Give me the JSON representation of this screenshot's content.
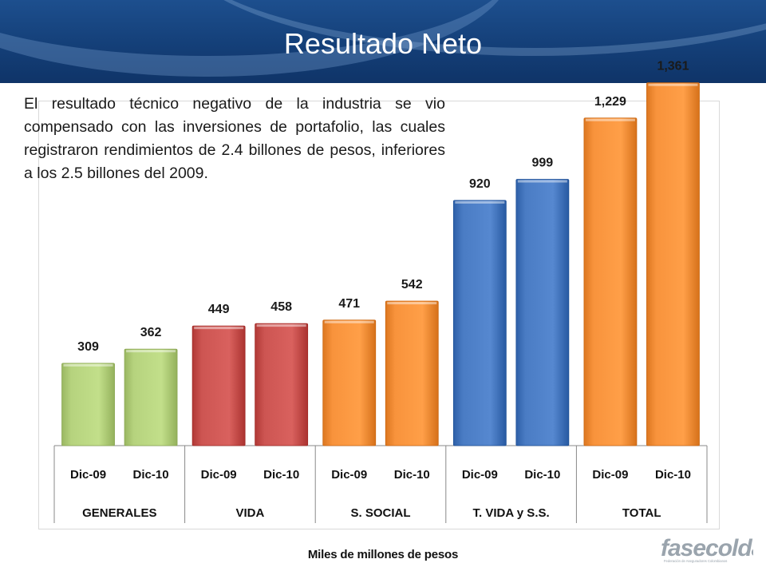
{
  "slide": {
    "title": "Resultado Neto",
    "description": "El resultado técnico negativo de la industria se vio compensado con las inversiones de portafolio, las cuales registraron rendimientos de 2.4 billones de pesos, inferiores a los 2.5 billones del 2009.",
    "unit_label": "Miles de millones de pesos",
    "logo_text": "fasecolda",
    "logo_subtext": "Federación de Aseguradores Colombianos"
  },
  "chart_data": {
    "type": "bar",
    "ylim": [
      0,
      1450
    ],
    "grid": false,
    "groups": [
      {
        "label": "GENERALES",
        "color": "#b6d37e",
        "bars": [
          {
            "category": "Dic-09",
            "value": 309,
            "label": "309"
          },
          {
            "category": "Dic-10",
            "value": 362,
            "label": "362"
          }
        ]
      },
      {
        "label": "VIDA",
        "color": "#cd5552",
        "bars": [
          {
            "category": "Dic-09",
            "value": 449,
            "label": "449"
          },
          {
            "category": "Dic-10",
            "value": 458,
            "label": "458"
          }
        ]
      },
      {
        "label": "S. SOCIAL",
        "color": "#f8933c",
        "bars": [
          {
            "category": "Dic-09",
            "value": 471,
            "label": "471"
          },
          {
            "category": "Dic-10",
            "value": 542,
            "label": "542"
          }
        ]
      },
      {
        "label": "T. VIDA y S.S.",
        "color": "#4a7cc4",
        "bars": [
          {
            "category": "Dic-09",
            "value": 920,
            "label": "920"
          },
          {
            "category": "Dic-10",
            "value": 999,
            "label": "999"
          }
        ]
      },
      {
        "label": "TOTAL",
        "color": "#f8933c",
        "bars": [
          {
            "category": "Dic-09",
            "value": 1229,
            "label": "1,229"
          },
          {
            "category": "Dic-10",
            "value": 1361,
            "label": "1,361"
          }
        ]
      }
    ]
  }
}
